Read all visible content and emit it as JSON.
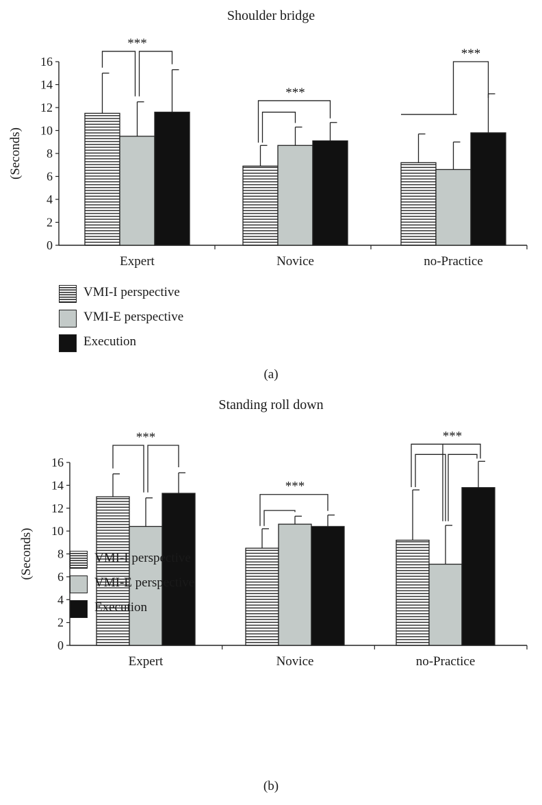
{
  "colors": {
    "hatch": "#222222",
    "grey": "#c3cac8",
    "black": "#111111",
    "axis": "#222222"
  },
  "legend_icons": [
    "horizontal-hatch",
    "light-grey-fill",
    "black-fill"
  ],
  "chart_data": [
    {
      "type": "bar",
      "panel_label": "(a)",
      "title": "Shoulder bridge",
      "ylabel": "(Seconds)",
      "xlabel": "",
      "ylim": [
        0,
        16
      ],
      "yticks": [
        "0",
        "2",
        "4",
        "6",
        "8",
        "10",
        "12",
        "14",
        "16"
      ],
      "categories": [
        "Expert",
        "Novice",
        "no-Practice"
      ],
      "series": [
        {
          "name": "VMI-I perspective",
          "values": [
            11.5,
            6.9,
            7.2
          ],
          "errors": [
            3.5,
            1.8,
            2.5
          ]
        },
        {
          "name": "VMI-E perspective",
          "values": [
            9.5,
            8.7,
            6.6
          ],
          "errors": [
            3.0,
            1.6,
            2.4
          ]
        },
        {
          "name": "Execution",
          "values": [
            11.6,
            9.1,
            9.8
          ],
          "errors": [
            3.7,
            1.6,
            3.4
          ]
        }
      ],
      "significance": [
        {
          "label": "***",
          "group": 0,
          "type": "fork",
          "bars": [
            0,
            1,
            2
          ],
          "level": 16.9
        },
        {
          "label": "***",
          "group": 1,
          "type": "nested",
          "bars": [
            0,
            1,
            2
          ],
          "level": 12.6,
          "inner_level": 11.6
        },
        {
          "label": "***",
          "group": 2,
          "type": "bracket",
          "bars": [
            1,
            2
          ],
          "level": 16.0,
          "extra_line_level": 11.4
        }
      ]
    },
    {
      "type": "bar",
      "panel_label": "(b)",
      "title": "Standing roll down",
      "ylabel": "(Seconds)",
      "xlabel": "",
      "ylim": [
        0,
        16
      ],
      "yticks": [
        "0",
        "2",
        "4",
        "6",
        "8",
        "10",
        "12",
        "14",
        "16"
      ],
      "categories": [
        "Expert",
        "Novice",
        "no-Practice"
      ],
      "series": [
        {
          "name": "VMI-I perspective",
          "values": [
            13.0,
            8.5,
            9.2
          ],
          "errors": [
            2.0,
            1.7,
            4.4
          ]
        },
        {
          "name": "VMI-E perspective",
          "values": [
            10.4,
            10.6,
            7.1
          ],
          "errors": [
            2.5,
            0.7,
            3.4
          ]
        },
        {
          "name": "Execution",
          "values": [
            13.3,
            10.4,
            13.8
          ],
          "errors": [
            1.8,
            1.0,
            2.3
          ]
        }
      ],
      "significance": [
        {
          "label": "***",
          "group": 0,
          "type": "fork",
          "bars": [
            0,
            1,
            2
          ],
          "level": 17.5
        },
        {
          "label": "***",
          "group": 1,
          "type": "nested",
          "bars": [
            0,
            1,
            2
          ],
          "level": 13.2,
          "inner_level": 11.8
        },
        {
          "label": "***",
          "group": 2,
          "type": "triple",
          "bars": [
            0,
            1,
            2
          ],
          "level": 17.6,
          "inner_level": 16.7
        }
      ]
    }
  ]
}
